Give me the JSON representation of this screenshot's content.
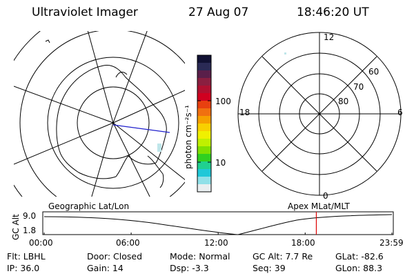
{
  "header": {
    "title": "Ultraviolet Imager",
    "date": "27 Aug 07",
    "time": "18:46:20 UT"
  },
  "colorbar": {
    "units": "photon cm⁻²s⁻¹",
    "tick_labels": [
      "100",
      "10"
    ],
    "colors": [
      "#111133",
      "#2a2a55",
      "#5a1f4a",
      "#8a1f40",
      "#b01030",
      "#d00020",
      "#e84010",
      "#f07010",
      "#f6a000",
      "#f8d000",
      "#f0f000",
      "#c0f000",
      "#80e000",
      "#30d020",
      "#20d090",
      "#20c8d8",
      "#90e0e8",
      "#e8eef0"
    ]
  },
  "geo_map": {
    "label": "Geographic Lat/Lon"
  },
  "mag_polar": {
    "label": "Apex MLat/MLT",
    "mlt_labels": [
      "12",
      "6",
      "0",
      "18"
    ],
    "lat_labels": [
      "60",
      "70",
      "80"
    ]
  },
  "altitude_plot": {
    "ylabel": "GC Alt",
    "y_ticks": [
      "9.0",
      "1.8"
    ],
    "x_ticks": [
      "00:00",
      "06:00",
      "12:00",
      "18:00",
      "23:59"
    ],
    "marker_time_hours": 18.77,
    "marker_color": "#dd0000"
  },
  "status": {
    "flt": "Flt: LBHL",
    "ip": "IP: 36.0",
    "door": "Door: Closed",
    "gain": "Gain: 14",
    "mode": "Mode: Normal",
    "dsp": "Dsp:     -3.3",
    "gc_alt": "GC Alt: 7.7 Re",
    "seq": "Seq: 39",
    "glat": "GLat:  -82.6",
    "glon": "GLon:  88.3"
  }
}
